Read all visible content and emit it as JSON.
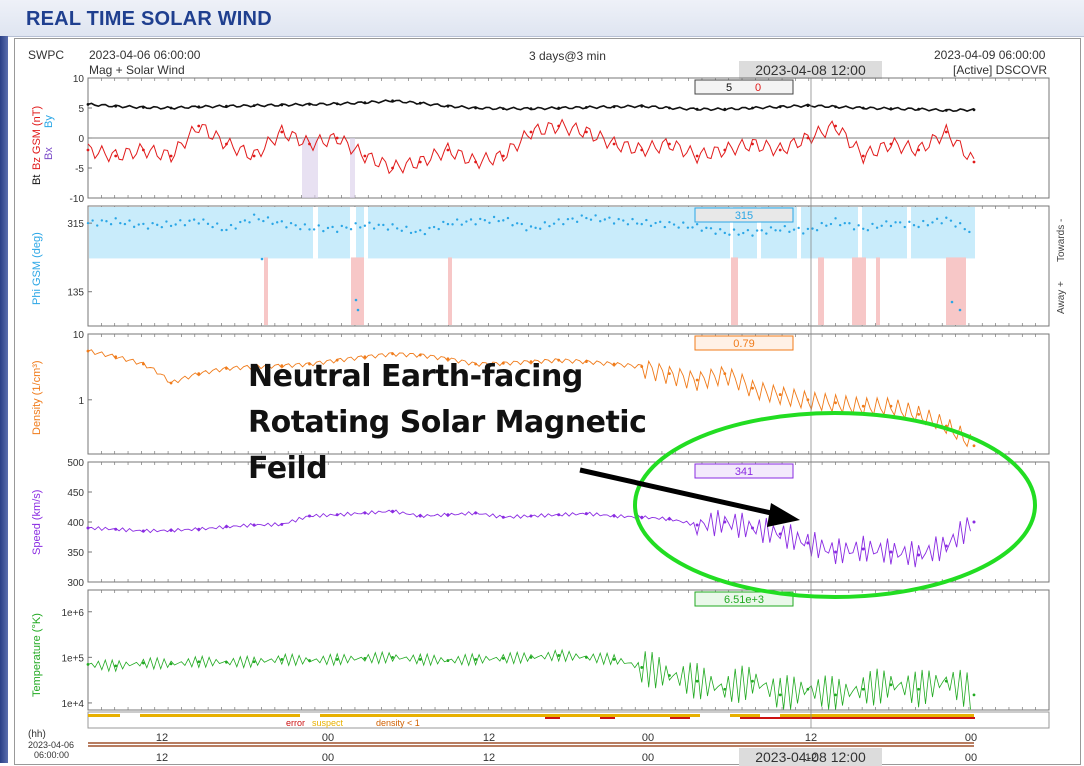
{
  "page": {
    "title": "REAL TIME SOLAR WIND",
    "source": "SWPC",
    "start_time": "2023-04-06 06:00:00",
    "range_label": "3 days@3 min",
    "end_time": "2023-04-09 06:00:00",
    "subtitle_left": "Mag + Solar Wind",
    "subtitle_right": "[Active] DSCOVR",
    "cursor_time": "2023-04-08 12:00",
    "annotation_lines": [
      "Neutral Earth-facing",
      "Rotating Solar Magnetic",
      "Feild"
    ],
    "annotation_color": "#22dd22"
  },
  "chart_data": [
    {
      "type": "line",
      "panel": "mag",
      "ylabel_parts": [
        "Bt",
        "Bz GSM (nT)",
        "Bx",
        "By"
      ],
      "ylim": [
        -10,
        10
      ],
      "yticks": [
        -10,
        -5,
        0,
        5,
        10
      ],
      "cursor_values": {
        "bt": "5",
        "bz": "0"
      },
      "series": [
        {
          "name": "Bt",
          "color": "#111111",
          "values": [
            5.6,
            5.3,
            5.1,
            5.0,
            5.2,
            5.3,
            5.4,
            5.5,
            5.6,
            5.7,
            5.9,
            6.2,
            5.8,
            5.3,
            5.0,
            4.9,
            4.9,
            5.0,
            5.1,
            5.2,
            5.3,
            5.0,
            4.8,
            4.8,
            5.0,
            5.2,
            5.4,
            5.2,
            5.0,
            4.9,
            4.8,
            4.6,
            4.7
          ]
        },
        {
          "name": "Bz GSM",
          "color": "#e11b1b",
          "values": [
            -2,
            -3,
            -2,
            -3,
            2,
            -1,
            -3,
            1,
            -1,
            0,
            -3,
            -5,
            -4,
            -2,
            -4,
            -3,
            1,
            2,
            1,
            -1,
            -2,
            -1,
            -3,
            -2,
            -1,
            -2,
            0,
            2,
            -3,
            -1,
            -2,
            1,
            -4
          ]
        }
      ]
    },
    {
      "type": "scatter",
      "panel": "phi",
      "ylabel": "Phi GSM (deg)",
      "yticks": [
        135,
        315
      ],
      "right_labels": [
        "Towards -",
        "Away +"
      ],
      "cursor_value": "315",
      "series": [
        {
          "name": "Phi GSM",
          "color": "#2aa6e6",
          "values": [
            315,
            320,
            308,
            312,
            322,
            298,
            330,
            314,
            302,
            300,
            310,
            305,
            290,
            315,
            320,
            325,
            300,
            318,
            330,
            322,
            316,
            312,
            305,
            290,
            290,
            300,
            295,
            320,
            300,
            315,
            310,
            325,
            290
          ]
        }
      ]
    },
    {
      "type": "line",
      "panel": "density",
      "ylabel": "Density (1/cm³)",
      "scale": "log",
      "yticks": [
        1,
        10
      ],
      "cursor_value": "0.79",
      "series": [
        {
          "name": "Density",
          "color": "#f07b1a",
          "values": [
            5.5,
            4.5,
            3.5,
            1.8,
            2.5,
            3.0,
            3.2,
            3.3,
            3.5,
            4.0,
            4.5,
            5.0,
            4.8,
            4.2,
            3.5,
            3.6,
            3.8,
            4.0,
            3.8,
            3.5,
            3.2,
            2.5,
            2.0,
            2.5,
            1.5,
            1.2,
            1.0,
            0.9,
            0.8,
            0.8,
            0.6,
            0.4,
            0.2
          ]
        }
      ]
    },
    {
      "type": "line",
      "panel": "speed",
      "ylabel": "Speed (km/s)",
      "ylim": [
        300,
        500
      ],
      "yticks": [
        300,
        350,
        400,
        450,
        500
      ],
      "cursor_value": "341",
      "series": [
        {
          "name": "Speed",
          "color": "#8a2be2",
          "values": [
            390,
            388,
            385,
            386,
            388,
            392,
            395,
            396,
            410,
            412,
            415,
            418,
            410,
            412,
            415,
            408,
            410,
            412,
            414,
            410,
            408,
            405,
            395,
            400,
            390,
            380,
            365,
            350,
            355,
            350,
            345,
            360,
            400
          ]
        }
      ]
    },
    {
      "type": "line",
      "panel": "temperature",
      "ylabel": "Temperature (°K)",
      "scale": "log",
      "yticks": [
        "1e+4",
        "1e+5",
        "1e+6"
      ],
      "cursor_value": "6.51e+3",
      "series": [
        {
          "name": "Temperature",
          "color": "#22aa22",
          "values": [
            70000,
            65000,
            75000,
            72000,
            80000,
            78000,
            80000,
            90000,
            85000,
            90000,
            95000,
            100000,
            90000,
            85000,
            90000,
            95000,
            100000,
            110000,
            100000,
            90000,
            60000,
            40000,
            30000,
            20000,
            30000,
            15000,
            20000,
            15000,
            20000,
            25000,
            20000,
            30000,
            15000
          ]
        }
      ]
    },
    {
      "type": "table",
      "panel": "quality",
      "legend": [
        {
          "label": "error",
          "color": "#cc1111"
        },
        {
          "label": "suspect",
          "color": "#e8b000"
        },
        {
          "label": "density < 1",
          "color": "#d06000"
        }
      ]
    },
    {
      "type": "table",
      "panel": "time-axis",
      "hh_label": "(hh)",
      "start_label_date": "2023-04-06",
      "start_label_time": "06:00:00",
      "tick_labels": [
        "12",
        "00",
        "12",
        "00",
        "12",
        "00"
      ]
    }
  ]
}
